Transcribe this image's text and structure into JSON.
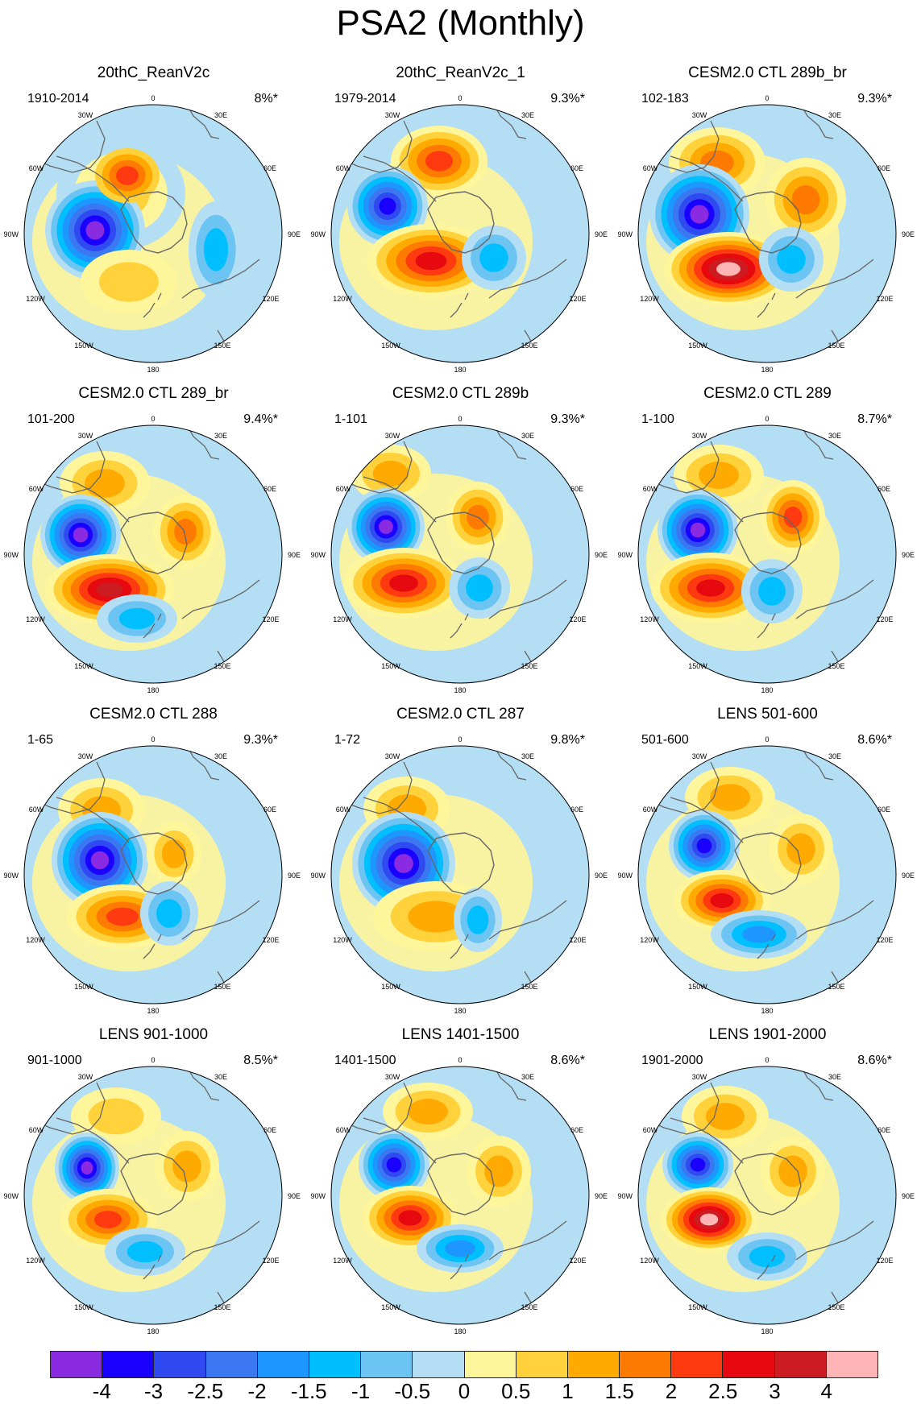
{
  "title": "PSA2 (Monthly)",
  "map_labels": {
    "lon_0": "0",
    "lon_30w": "30W",
    "lon_30e": "30E",
    "lon_60w": "60W",
    "lon_60e": "60E",
    "lon_90w": "90W",
    "lon_90e": "90E",
    "lon_120w": "120W",
    "lon_120e": "120E",
    "lon_150w": "150W",
    "lon_150e": "150E",
    "lon_180": "180"
  },
  "panels": [
    {
      "title": "20thC_ReanV2c",
      "period": "1910-2014",
      "variance": "8%*"
    },
    {
      "title": "20thC_ReanV2c_1",
      "period": "1979-2014",
      "variance": "9.3%*"
    },
    {
      "title": "CESM2.0 CTL 289b_br",
      "period": "102-183",
      "variance": "9.3%*"
    },
    {
      "title": "CESM2.0 CTL 289_br",
      "period": "101-200",
      "variance": "9.4%*"
    },
    {
      "title": "CESM2.0 CTL 289b",
      "period": "1-101",
      "variance": "9.3%*"
    },
    {
      "title": "CESM2.0 CTL 289",
      "period": "1-100",
      "variance": "8.7%*"
    },
    {
      "title": "CESM2.0 CTL 288",
      "period": "1-65",
      "variance": "9.3%*"
    },
    {
      "title": "CESM2.0 CTL 287",
      "period": "1-72",
      "variance": "9.8%*"
    },
    {
      "title": "LENS 501-600",
      "period": "501-600",
      "variance": "8.6%*"
    },
    {
      "title": "LENS 901-1000",
      "period": "901-1000",
      "variance": "8.5%*"
    },
    {
      "title": "LENS 1401-1500",
      "period": "1401-1500",
      "variance": "8.6%*"
    },
    {
      "title": "LENS 1901-2000",
      "period": "1901-2000",
      "variance": "8.6%*"
    }
  ],
  "colorbar": {
    "labels": [
      "-4",
      "-3",
      "-2.5",
      "-2",
      "-1.5",
      "-1",
      "-0.5",
      "0",
      "0.5",
      "1",
      "1.5",
      "2",
      "2.5",
      "3",
      "4"
    ],
    "colors": [
      "#8a2be2",
      "#1a00ff",
      "#2f4af0",
      "#3a77f0",
      "#1e96ff",
      "#00bfff",
      "#6cc4f2",
      "#b4def4",
      "#fff59a",
      "#ffd23c",
      "#ffaa00",
      "#ff7a00",
      "#ff3a10",
      "#e60a10",
      "#cc1c22",
      "#ffb5b5"
    ]
  }
}
